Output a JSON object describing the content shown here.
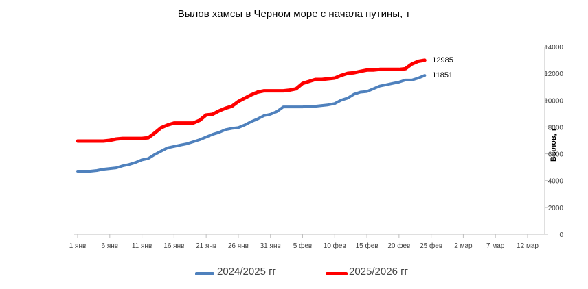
{
  "chart_data": {
    "type": "line",
    "title": "Вылов хамсы в Черном море с начала путины, т",
    "ylabel": "Вылов, т",
    "xlabel": "",
    "ylim": [
      0,
      14000
    ],
    "yticks": [
      0,
      2000,
      4000,
      6000,
      8000,
      10000,
      12000,
      14000
    ],
    "y_axis_position": "right",
    "grid": false,
    "legend_position": "bottom",
    "x_tick_labels": [
      "1 янв",
      "6 янв",
      "11 янв",
      "16 янв",
      "21 янв",
      "26 янв",
      "31 янв",
      "5 фев",
      "10 фев",
      "15 фев",
      "20 фев",
      "25 фев",
      "2 мар",
      "7 мар",
      "12 мар"
    ],
    "x_tick_days": [
      0,
      5,
      10,
      15,
      20,
      25,
      30,
      35,
      40,
      45,
      50,
      55,
      60,
      65,
      70
    ],
    "x_range": [
      0,
      70
    ],
    "series": [
      {
        "name": "2024/2025 гг",
        "color": "#4f81bd",
        "x": [
          0,
          1,
          2,
          3,
          4,
          5,
          6,
          7,
          8,
          9,
          10,
          11,
          12,
          13,
          14,
          15,
          16,
          17,
          18,
          19,
          20,
          21,
          22,
          23,
          24,
          25,
          26,
          27,
          28,
          29,
          30,
          31,
          32,
          33,
          34,
          35,
          36,
          37,
          38,
          39,
          40,
          41,
          42,
          43,
          44,
          45,
          46,
          47,
          48,
          49,
          50,
          51,
          52,
          53,
          54
        ],
        "values": [
          4700,
          4700,
          4700,
          4750,
          4850,
          4900,
          4950,
          5100,
          5200,
          5350,
          5550,
          5650,
          5950,
          6200,
          6450,
          6550,
          6650,
          6750,
          6900,
          7050,
          7250,
          7450,
          7600,
          7800,
          7900,
          7950,
          8150,
          8400,
          8600,
          8850,
          8950,
          9150,
          9500,
          9500,
          9500,
          9500,
          9550,
          9550,
          9600,
          9650,
          9750,
          10000,
          10150,
          10450,
          10600,
          10650,
          10850,
          11050,
          11150,
          11250,
          11350,
          11500,
          11500,
          11650,
          11851
        ],
        "end_label": "11851"
      },
      {
        "name": "2025/2026 гг",
        "color": "#ff0000",
        "x": [
          0,
          1,
          2,
          3,
          4,
          5,
          6,
          7,
          8,
          9,
          10,
          11,
          12,
          13,
          14,
          15,
          16,
          17,
          18,
          19,
          20,
          21,
          22,
          23,
          24,
          25,
          26,
          27,
          28,
          29,
          30,
          31,
          32,
          33,
          34,
          35,
          36,
          37,
          38,
          39,
          40,
          41,
          42,
          43,
          44,
          45,
          46,
          47,
          48,
          49,
          50,
          51,
          52,
          53,
          54
        ],
        "values": [
          6950,
          6950,
          6950,
          6950,
          6950,
          7000,
          7100,
          7150,
          7150,
          7150,
          7150,
          7200,
          7550,
          7950,
          8150,
          8300,
          8300,
          8300,
          8300,
          8500,
          8900,
          8950,
          9200,
          9400,
          9550,
          9900,
          10150,
          10400,
          10600,
          10700,
          10700,
          10700,
          10700,
          10750,
          10850,
          11250,
          11400,
          11550,
          11550,
          11600,
          11650,
          11850,
          12000,
          12050,
          12150,
          12250,
          12250,
          12300,
          12300,
          12300,
          12300,
          12350,
          12700,
          12900,
          12985
        ],
        "end_label": "12985"
      }
    ]
  }
}
